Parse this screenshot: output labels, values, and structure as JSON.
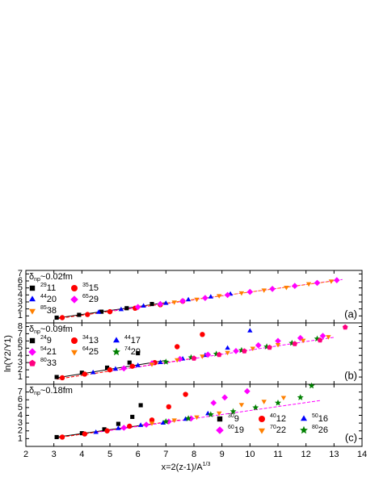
{
  "chart_data": [
    {
      "type": "scatter",
      "annotation": "δ",
      "annotation_sub": "np",
      "annotation_rest": "~0.02fm",
      "panel_label": "(a)",
      "legend": "upper left",
      "xlim": [
        2,
        14
      ],
      "xticks": [
        2,
        3,
        4,
        5,
        6,
        7,
        8,
        9,
        10,
        11,
        12,
        13,
        14
      ],
      "ylim": [
        0,
        7.5
      ],
      "yticks": [
        1,
        2,
        3,
        4,
        5,
        6,
        7
      ],
      "series": [
        {
          "name_sup": "29",
          "name": "11",
          "color": "#000000",
          "marker": "square",
          "x": [
            3.1,
            3.9,
            4.7,
            5.6,
            6.5
          ],
          "values": [
            0.75,
            1.15,
            1.6,
            2.1,
            2.7
          ]
        },
        {
          "name_sup": "35",
          "name": "15",
          "color": "#ff0000",
          "marker": "circle",
          "x": [
            3.3,
            4.2,
            5.0,
            5.9,
            6.8,
            7.6
          ],
          "values": [
            0.75,
            1.2,
            1.6,
            2.1,
            2.6,
            3.1
          ]
        },
        {
          "name_sup": "44",
          "name": "20",
          "color": "#0000ff",
          "marker": "triangle",
          "x": [
            4.6,
            5.4,
            6.2,
            7.0,
            7.8,
            8.6,
            9.3
          ],
          "values": [
            1.5,
            1.9,
            2.4,
            2.8,
            3.3,
            3.7,
            4.1
          ]
        },
        {
          "name_sup": "65",
          "name": "29",
          "color": "#ff00ff",
          "marker": "diamond",
          "x": [
            6.0,
            6.8,
            7.6,
            8.4,
            9.2,
            10.0,
            10.8,
            11.6,
            12.4,
            13.1
          ],
          "values": [
            2.27,
            2.7,
            3.13,
            3.56,
            3.99,
            4.43,
            4.86,
            5.29,
            5.72,
            6.1
          ]
        },
        {
          "name_sup": "85",
          "name": "38",
          "color": "#ff8000",
          "marker": "triangle-down",
          "x": [
            7.3,
            8.1,
            8.9,
            9.7,
            10.5,
            11.3,
            12.1,
            12.9
          ],
          "values": [
            3.0,
            3.4,
            3.9,
            4.3,
            4.7,
            5.1,
            5.6,
            6.0
          ]
        }
      ],
      "fit_lines": [
        {
          "color": "#000000",
          "x": [
            3.1,
            7.0
          ],
          "values": [
            0.7,
            2.9
          ]
        },
        {
          "color": "#ff0000",
          "x": [
            3.1,
            8.0
          ],
          "values": [
            0.6,
            3.3
          ]
        },
        {
          "color": "#ff00ff",
          "x": [
            5.0,
            13.3
          ],
          "values": [
            1.7,
            6.2
          ]
        },
        {
          "color": "#ff8000",
          "x": [
            6.0,
            13.0
          ],
          "values": [
            2.3,
            6.0
          ]
        }
      ]
    },
    {
      "type": "scatter",
      "annotation": "δ",
      "annotation_sub": "np",
      "annotation_rest": "~0.09fm",
      "panel_label": "(b)",
      "legend": "upper left",
      "y_label": "ln(Y2/Y1)",
      "xlim": [
        2,
        14
      ],
      "xticks": [
        2,
        3,
        4,
        5,
        6,
        7,
        8,
        9,
        10,
        11,
        12,
        13,
        14
      ],
      "ylim": [
        0,
        8.5
      ],
      "yticks": [
        1,
        2,
        3,
        4,
        5,
        6,
        7,
        8
      ],
      "series": [
        {
          "name_sup": "24",
          "name": "9",
          "color": "#000000",
          "marker": "square",
          "x": [
            3.1,
            4.0,
            4.9,
            5.7,
            6.0
          ],
          "values": [
            1.0,
            1.6,
            2.3,
            3.0,
            4.3
          ]
        },
        {
          "name_sup": "34",
          "name": "13",
          "color": "#ff0000",
          "marker": "circle",
          "x": [
            3.3,
            4.1,
            5.0,
            5.8,
            6.6,
            7.4,
            8.3
          ],
          "values": [
            0.9,
            1.4,
            2.0,
            2.5,
            3.0,
            5.2,
            6.9
          ]
        },
        {
          "name_sup": "44",
          "name": "17",
          "color": "#0000ff",
          "marker": "triangle",
          "x": [
            4.4,
            5.2,
            6.0,
            6.8,
            7.6,
            8.4,
            9.2,
            10.0
          ],
          "values": [
            1.6,
            2.1,
            2.6,
            3.0,
            3.5,
            4.0,
            5.0,
            7.4
          ]
        },
        {
          "name_sup": "54",
          "name": "21",
          "color": "#ff00ff",
          "marker": "diamond",
          "x": [
            5.5,
            6.5,
            7.5,
            8.5,
            9.5,
            10.3,
            11.0,
            11.8,
            12.6
          ],
          "values": [
            2.2,
            2.9,
            3.5,
            4.1,
            4.6,
            5.4,
            6.0,
            6.4,
            6.7
          ]
        },
        {
          "name_sup": "64",
          "name": "25",
          "color": "#ff8000",
          "marker": "triangle-down",
          "x": [
            6.5,
            7.4,
            8.3,
            9.2,
            10.1,
            11.0,
            11.9,
            12.8
          ],
          "values": [
            2.8,
            3.4,
            3.9,
            4.4,
            5.0,
            5.5,
            6.1,
            6.6
          ]
        },
        {
          "name_sup": "74",
          "name": "29",
          "color": "#008000",
          "marker": "star",
          "x": [
            7.0,
            7.9,
            8.8,
            9.7,
            10.6,
            11.5,
            12.4
          ],
          "values": [
            3.1,
            3.7,
            4.2,
            4.7,
            5.2,
            5.7,
            6.3
          ]
        },
        {
          "name_sup": "80",
          "name": "33",
          "color": "#ff0080",
          "marker": "pentagon",
          "x": [
            8.0,
            8.9,
            9.8,
            10.7,
            11.6,
            12.5,
            13.4
          ],
          "values": [
            3.6,
            4.1,
            4.6,
            5.1,
            5.6,
            6.1,
            7.9
          ]
        }
      ],
      "fit_lines": [
        {
          "color": "#000000",
          "x": [
            3.1,
            7.0
          ],
          "values": [
            0.9,
            3.3
          ]
        },
        {
          "color": "#ff0000",
          "x": [
            3.1,
            8.0
          ],
          "values": [
            0.7,
            3.6
          ]
        },
        {
          "color": "#ff00ff",
          "x": [
            5.0,
            13.0
          ],
          "values": [
            1.8,
            6.5
          ]
        }
      ]
    },
    {
      "type": "scatter",
      "annotation": "δ",
      "annotation_sub": "np",
      "annotation_rest": "~0.18fm",
      "panel_label": "(c)",
      "legend": "lower right",
      "x_label": "x=2(z-1)/A",
      "x_label_sup": "1/3",
      "xlim": [
        2,
        14
      ],
      "xticks": [
        2,
        3,
        4,
        5,
        6,
        7,
        8,
        9,
        10,
        11,
        12,
        13,
        14
      ],
      "ylim": [
        0,
        8
      ],
      "yticks": [
        1,
        2,
        3,
        4,
        5,
        6,
        7
      ],
      "series": [
        {
          "name_sup": "30",
          "name": "9",
          "color": "#000000",
          "marker": "square",
          "x": [
            3.1,
            4.0,
            4.8,
            5.3,
            5.8,
            6.1
          ],
          "values": [
            1.2,
            1.7,
            2.2,
            2.9,
            3.8,
            5.3
          ]
        },
        {
          "name_sup": "40",
          "name": "12",
          "color": "#ff0000",
          "marker": "circle",
          "x": [
            3.3,
            4.1,
            4.9,
            5.7,
            6.5,
            7.1,
            7.7
          ],
          "values": [
            1.2,
            1.6,
            2.0,
            2.6,
            3.4,
            5.1,
            6.7
          ]
        },
        {
          "name_sup": "50",
          "name": "16",
          "color": "#0000ff",
          "marker": "triangle",
          "x": [
            4.5,
            5.3,
            6.1,
            6.9,
            7.7,
            8.5
          ],
          "values": [
            1.8,
            2.3,
            2.7,
            3.0,
            3.5,
            4.2
          ]
        },
        {
          "name_sup": "60",
          "name": "19",
          "color": "#ff00ff",
          "marker": "diamond",
          "x": [
            5.5,
            6.3,
            7.1,
            7.9,
            8.7,
            9.1,
            9.9
          ],
          "values": [
            2.4,
            2.8,
            3.2,
            3.6,
            5.6,
            6.3,
            7.1
          ]
        },
        {
          "name_sup": "70",
          "name": "22",
          "color": "#ff8000",
          "marker": "triangle-down",
          "x": [
            6.5,
            7.3,
            8.1,
            8.9,
            9.7,
            10.5,
            11.2
          ],
          "values": [
            3.0,
            3.4,
            3.8,
            4.3,
            5.4,
            5.8,
            6.3
          ]
        },
        {
          "name_sup": "80",
          "name": "26",
          "color": "#008000",
          "marker": "star",
          "x": [
            7.0,
            7.8,
            8.6,
            9.4,
            10.2,
            11.0,
            11.8,
            12.2
          ],
          "values": [
            3.2,
            3.6,
            4.1,
            4.5,
            5.0,
            5.6,
            6.3,
            7.8
          ]
        }
      ],
      "fit_lines": [
        {
          "color": "#000000",
          "x": [
            3.1,
            6.5
          ],
          "values": [
            1.2,
            2.9
          ]
        },
        {
          "color": "#ff0000",
          "x": [
            3.1,
            7.5
          ],
          "values": [
            1.1,
            3.4
          ]
        },
        {
          "color": "#ff00ff",
          "x": [
            4.5,
            12.5
          ],
          "values": [
            1.8,
            5.9
          ]
        }
      ]
    }
  ]
}
